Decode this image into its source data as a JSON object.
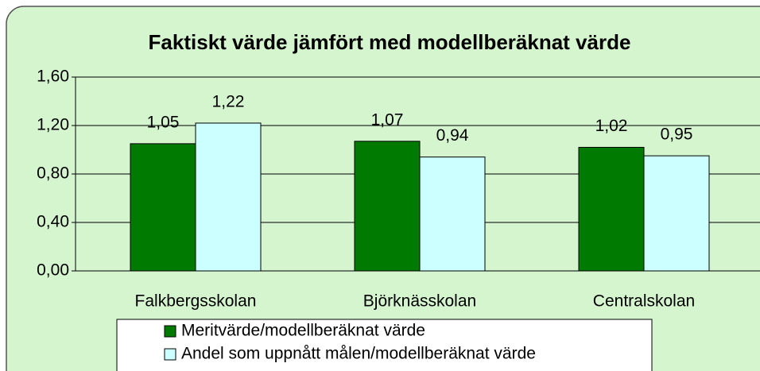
{
  "chart_data": {
    "type": "bar",
    "title": "Faktiskt värde jämfört med modellberäknat värde",
    "categories": [
      "Falkbergsskolan",
      "Björknässkolan",
      "Centralskolan"
    ],
    "series": [
      {
        "name": "Meritvärde/modellberäknat värde",
        "color": "#007a00",
        "values": [
          1.05,
          1.07,
          1.02
        ],
        "value_labels": [
          "1,05",
          "1,07",
          "1,02"
        ]
      },
      {
        "name": "Andel som uppnått målen/modellberäknat värde",
        "color": "#ccffff",
        "values": [
          1.22,
          0.94,
          0.95
        ],
        "value_labels": [
          "1,22",
          "0,94",
          "0,95"
        ]
      }
    ],
    "ylim": [
      0,
      1.6
    ],
    "yticks": [
      {
        "value": 0,
        "label": "0,00"
      },
      {
        "value": 0.4,
        "label": "0,40"
      },
      {
        "value": 0.8,
        "label": "0,80"
      },
      {
        "value": 1.2,
        "label": "1,20"
      },
      {
        "value": 1.6,
        "label": "1,60"
      }
    ],
    "grid": true
  }
}
